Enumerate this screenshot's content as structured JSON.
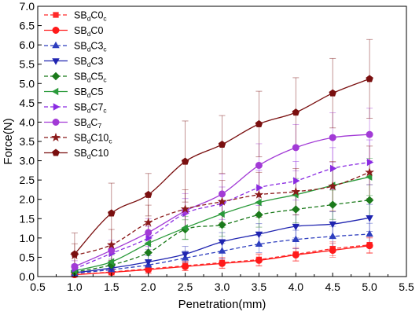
{
  "chart_data": {
    "type": "line",
    "title": "",
    "xlabel": "Penetration(mm)",
    "ylabel": "Force(N)",
    "xlim": [
      0.5,
      5.5
    ],
    "ylim": [
      0.0,
      7.0
    ],
    "xticks": [
      "0.5",
      "1.0",
      "1.5",
      "2.0",
      "2.5",
      "3.0",
      "3.5",
      "4.0",
      "4.5",
      "5.0",
      "5.5"
    ],
    "yticks": [
      "0.0",
      "0.5",
      "1.0",
      "1.5",
      "2.0",
      "2.5",
      "3.0",
      "3.5",
      "4.0",
      "4.5",
      "5.0",
      "5.5",
      "6.0",
      "6.5",
      "7.0"
    ],
    "grid": false,
    "legend": "top-left",
    "x": [
      1.0,
      1.5,
      2.0,
      2.5,
      3.0,
      3.5,
      4.0,
      4.5,
      5.0
    ],
    "series": [
      {
        "name": "SBdC0c",
        "label_parts": [
          "SB",
          "d",
          "C0",
          "c"
        ],
        "color": "#ff2a2a",
        "dashed": true,
        "marker": "square",
        "values": [
          0.05,
          0.12,
          0.2,
          0.28,
          0.36,
          0.44,
          0.58,
          0.72,
          0.82
        ],
        "errors": [
          0.05,
          0.08,
          0.1,
          0.12,
          0.14,
          0.15,
          0.17,
          0.18,
          0.2
        ]
      },
      {
        "name": "SBdC0",
        "label_parts": [
          "SB",
          "d",
          "C0",
          ""
        ],
        "color": "#ff1a1a",
        "dashed": false,
        "marker": "circle",
        "values": [
          0.05,
          0.11,
          0.18,
          0.26,
          0.34,
          0.42,
          0.56,
          0.68,
          0.8
        ],
        "errors": [
          0.05,
          0.07,
          0.1,
          0.11,
          0.13,
          0.15,
          0.16,
          0.18,
          0.2
        ]
      },
      {
        "name": "SBdC3c",
        "label_parts": [
          "SB",
          "d",
          "C3",
          "c"
        ],
        "color": "#2e3fbf",
        "dashed": true,
        "marker": "triangle-up",
        "values": [
          0.08,
          0.18,
          0.3,
          0.48,
          0.66,
          0.84,
          0.96,
          1.04,
          1.1
        ],
        "errors": [
          0.06,
          0.1,
          0.14,
          0.18,
          0.2,
          0.22,
          0.24,
          0.26,
          0.28
        ]
      },
      {
        "name": "SBdC3",
        "label_parts": [
          "SB",
          "d",
          "C3",
          ""
        ],
        "color": "#1f24b0",
        "dashed": false,
        "marker": "triangle-down",
        "values": [
          0.1,
          0.22,
          0.38,
          0.58,
          0.9,
          1.1,
          1.3,
          1.36,
          1.52
        ],
        "errors": [
          0.07,
          0.12,
          0.16,
          0.2,
          0.24,
          0.27,
          0.3,
          0.32,
          0.35
        ]
      },
      {
        "name": "SBdC5c",
        "label_parts": [
          "SB",
          "d",
          "C5",
          "c"
        ],
        "color": "#1b7a1b",
        "dashed": true,
        "marker": "diamond",
        "values": [
          0.12,
          0.3,
          0.62,
          1.22,
          1.34,
          1.6,
          1.74,
          1.86,
          1.98
        ],
        "errors": [
          0.08,
          0.15,
          0.2,
          0.25,
          0.3,
          0.32,
          0.35,
          0.38,
          0.4
        ]
      },
      {
        "name": "SBdC5",
        "label_parts": [
          "SB",
          "d",
          "C5",
          ""
        ],
        "color": "#2a9a3a",
        "dashed": false,
        "marker": "triangle-left",
        "values": [
          0.15,
          0.38,
          0.86,
          1.26,
          1.62,
          1.92,
          2.12,
          2.36,
          2.58
        ],
        "errors": [
          0.1,
          0.18,
          0.25,
          0.3,
          0.35,
          0.38,
          0.42,
          0.45,
          0.48
        ]
      },
      {
        "name": "SBdC7c",
        "label_parts": [
          "SB",
          "d",
          "C7",
          "c"
        ],
        "color": "#8a2be2",
        "dashed": true,
        "marker": "triangle-right",
        "values": [
          0.2,
          0.6,
          1.0,
          1.64,
          1.9,
          2.3,
          2.48,
          2.8,
          2.96
        ],
        "errors": [
          0.12,
          0.22,
          0.3,
          0.38,
          0.42,
          0.46,
          0.5,
          0.54,
          0.58
        ]
      },
      {
        "name": "SBdC7",
        "label_parts": [
          "SB",
          "d",
          "C",
          "7"
        ],
        "color": "#a23ad6",
        "dashed": false,
        "marker": "circle",
        "values": [
          0.26,
          0.68,
          1.14,
          1.7,
          2.14,
          2.88,
          3.34,
          3.6,
          3.68
        ],
        "errors": [
          0.15,
          0.26,
          0.36,
          0.45,
          0.52,
          0.56,
          0.6,
          0.64,
          0.68
        ]
      },
      {
        "name": "SBdC10c",
        "label_parts": [
          "SB",
          "d",
          "C10",
          "c"
        ],
        "color": "#8b1a1a",
        "dashed": true,
        "marker": "star",
        "values": [
          0.55,
          0.82,
          1.4,
          1.75,
          1.94,
          2.12,
          2.2,
          2.34,
          2.7
        ],
        "errors": [
          0.3,
          0.4,
          0.45,
          0.5,
          0.55,
          0.58,
          0.6,
          0.64,
          0.68
        ]
      },
      {
        "name": "SBdC10",
        "label_parts": [
          "SB",
          "d",
          "C10",
          ""
        ],
        "color": "#7a0f0f",
        "dashed": false,
        "marker": "pentagon",
        "values": [
          0.58,
          1.64,
          2.12,
          2.98,
          3.42,
          3.95,
          4.25,
          4.75,
          5.12
        ],
        "errors": [
          0.55,
          0.78,
          0.55,
          1.05,
          0.75,
          0.85,
          0.9,
          0.9,
          1.02
        ]
      }
    ]
  }
}
